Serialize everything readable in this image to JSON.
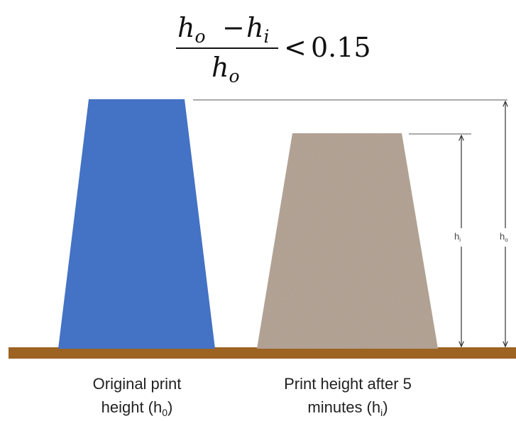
{
  "formula": {
    "numerator_left_var": "h",
    "numerator_left_sub": "o",
    "minus": "−",
    "numerator_right_var": "h",
    "numerator_right_sub": "i",
    "denominator_var": "h",
    "denominator_sub": "o",
    "relation": "<",
    "threshold": "0.15"
  },
  "shapes": {
    "original": {
      "color": "#4472c4"
    },
    "after": {
      "color": "#b0a092"
    }
  },
  "ground": {
    "color": "#9c6323"
  },
  "dimensions": {
    "hi": {
      "label_main": "h",
      "label_sub": "i"
    },
    "ho": {
      "label_main": "h",
      "label_sub": "o"
    }
  },
  "captions": {
    "original": {
      "line1": "Original print",
      "line2_prefix": "height (h",
      "line2_sub": "0",
      "line2_suffix": ")"
    },
    "after": {
      "line1": "Print height after 5",
      "line2_prefix": "minutes (h",
      "line2_sub": "i",
      "line2_suffix": ")"
    }
  }
}
